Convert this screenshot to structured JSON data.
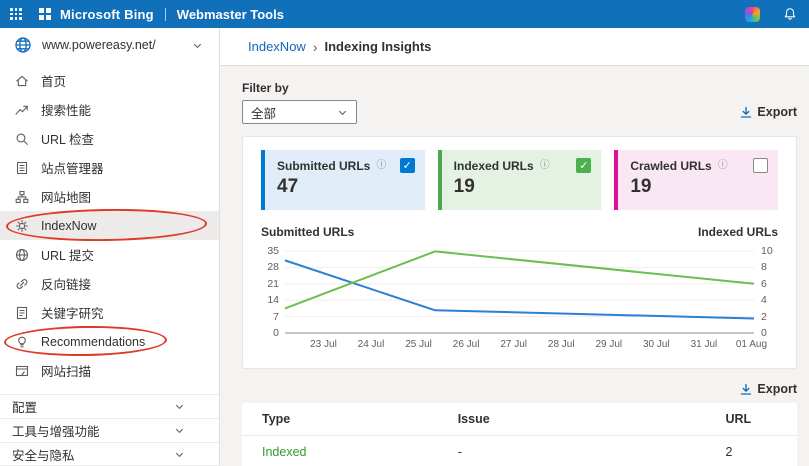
{
  "header": {
    "brand": "Microsoft Bing",
    "product": "Webmaster Tools"
  },
  "site_selector": {
    "site": "www.powereasy.net/"
  },
  "sidebar": {
    "items": [
      {
        "label": "首页",
        "icon": "home-icon"
      },
      {
        "label": "搜索性能",
        "icon": "performance-icon"
      },
      {
        "label": "URL 检查",
        "icon": "magnifier-icon"
      },
      {
        "label": "站点管理器",
        "icon": "site-explorer-icon"
      },
      {
        "label": "网站地图",
        "icon": "sitemap-icon"
      },
      {
        "label": "IndexNow",
        "icon": "gear-icon",
        "selected": true,
        "annotated": "red-ellipse"
      },
      {
        "label": "URL 提交",
        "icon": "globe-icon"
      },
      {
        "label": "反向链接",
        "icon": "link-icon"
      },
      {
        "label": "关键字研究",
        "icon": "keyword-icon"
      },
      {
        "label": "Recommendations",
        "icon": "recommendations-icon",
        "annotated": "red-ellipse"
      },
      {
        "label": "网站扫描",
        "icon": "scan-icon"
      }
    ],
    "groups": [
      "配置",
      "工具与增强功能",
      "安全与隐私"
    ]
  },
  "breadcrumb": {
    "parent": "IndexNow",
    "separator": "›",
    "current": "Indexing Insights"
  },
  "filter": {
    "label": "Filter by",
    "selected": "全部"
  },
  "export_label": "Export",
  "cards": [
    {
      "title": "Submitted URLs",
      "value": "47",
      "checked": true,
      "accent": "#0078d4",
      "bg": "#e0edf8"
    },
    {
      "title": "Indexed URLs",
      "value": "19",
      "checked": true,
      "accent": "#4ca64c",
      "bg": "#e4f2e3"
    },
    {
      "title": "Crawled URLs",
      "value": "19",
      "checked": false,
      "accent": "#dc0f9b",
      "bg": "#f9e7f4"
    }
  ],
  "chart_data": {
    "type": "line",
    "x_ticks": [
      "23 Jul",
      "24 Jul",
      "25 Jul",
      "26 Jul",
      "27 Jul",
      "28 Jul",
      "29 Jul",
      "30 Jul",
      "31 Jul",
      "01 Aug"
    ],
    "left_axis": {
      "label": "Submitted URLs",
      "range": [
        0,
        35
      ],
      "ticks": [
        35,
        28,
        21,
        14,
        7,
        0
      ]
    },
    "right_axis": {
      "label": "Indexed URLs",
      "range": [
        0,
        10
      ],
      "ticks": [
        10,
        8,
        6,
        4,
        2,
        0
      ]
    },
    "grid": true,
    "legend_position": "none",
    "series": [
      {
        "name": "Submitted URLs",
        "axis": "left",
        "color": "#2b7fd4",
        "points": [
          {
            "x_frac": 0,
            "value": 31
          },
          {
            "x_frac": 0.32,
            "value": 9.7
          },
          {
            "x_frac": 1,
            "value": 6.2
          }
        ]
      },
      {
        "name": "Indexed URLs",
        "axis": "right",
        "color": "#6abf50",
        "points": [
          {
            "x_frac": 0,
            "value": 3
          },
          {
            "x_frac": 0.32,
            "value": 9.95
          },
          {
            "x_frac": 1,
            "value": 6
          }
        ]
      }
    ]
  },
  "table": {
    "columns": [
      "Type",
      "Issue",
      "URL"
    ],
    "rows": [
      {
        "type": "Indexed",
        "issue": "-",
        "url": "2"
      }
    ]
  }
}
